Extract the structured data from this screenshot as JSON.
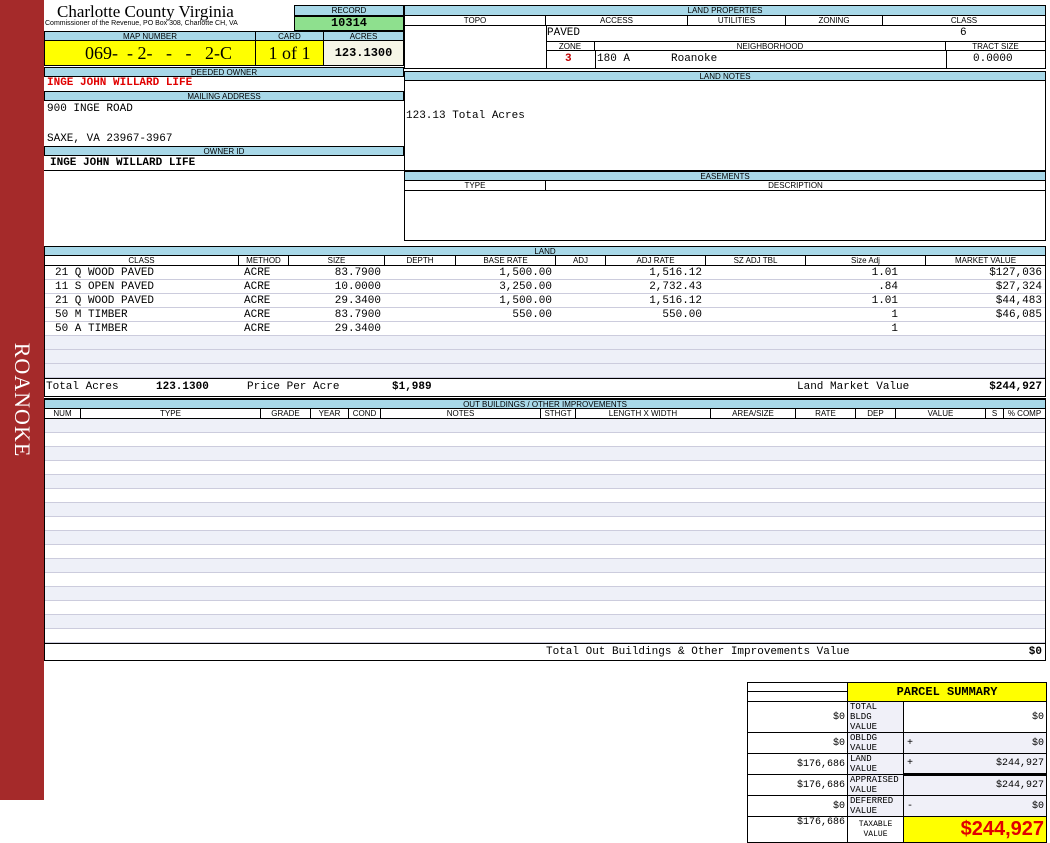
{
  "sidebar": {
    "label": "ROANOKE",
    "color": "#a52a2a"
  },
  "header": {
    "title": "Charlotte County Virginia",
    "subtitle": "Commissioner of the Revenue, PO Box 308, Charlotte CH, VA"
  },
  "record": {
    "label": "RECORD",
    "value": "10314"
  },
  "map": {
    "label": "MAP NUMBER",
    "value": "069-  - 2-   -   -   2-C",
    "card_label": "CARD",
    "card": "1 of 1",
    "acres_label": "ACRES",
    "acres": "123.1300"
  },
  "owner": {
    "deeded_label": "DEEDED OWNER",
    "deeded": "INGE JOHN WILLARD LIFE",
    "mailing_label": "MAILING ADDRESS",
    "address1": "900 INGE ROAD",
    "address2": "SAXE, VA 23967-3967",
    "id_label": "OWNER ID",
    "id": "INGE JOHN WILLARD LIFE"
  },
  "land_properties": {
    "label": "LAND PROPERTIES",
    "topo": "TOPO",
    "access": "ACCESS",
    "utilities": "UTILITIES",
    "zoning": "ZONING",
    "class": "CLASS",
    "access_value": "PAVED",
    "class_value": "6",
    "zone_label": "ZONE",
    "neighborhood_label": "NEIGHBORHOOD",
    "tract_label": "TRACT SIZE",
    "zone": "3",
    "neighborhood_code": "180 A",
    "neighborhood": "Roanoke",
    "tract": "0.0000"
  },
  "land_notes": {
    "label": "LAND NOTES",
    "text": "123.13 Total Acres"
  },
  "easements": {
    "label": "EASEMENTS",
    "type": "TYPE",
    "description": "DESCRIPTION"
  },
  "land": {
    "label": "LAND",
    "columns": [
      "CLASS",
      "METHOD",
      "SIZE",
      "DEPTH",
      "BASE RATE",
      "ADJ",
      "ADJ RATE",
      "SZ ADJ TBL",
      "Size Adj",
      "MARKET VALUE"
    ],
    "rows": [
      [
        "21 Q WOOD PAVED",
        "ACRE",
        "83.7900",
        "",
        "1,500.00",
        "",
        "1,516.12",
        "",
        "1.01",
        "$127,036"
      ],
      [
        "11 S OPEN PAVED",
        "ACRE",
        "10.0000",
        "",
        "3,250.00",
        "",
        "2,732.43",
        "",
        ".84",
        "$27,324"
      ],
      [
        "21 Q WOOD PAVED",
        "ACRE",
        "29.3400",
        "",
        "1,500.00",
        "",
        "1,516.12",
        "",
        "1.01",
        "$44,483"
      ],
      [
        "50 M TIMBER",
        "ACRE",
        "83.7900",
        "",
        "550.00",
        "",
        "550.00",
        "",
        "1",
        "$46,085"
      ],
      [
        "50 A TIMBER",
        "ACRE",
        "29.3400",
        "",
        "",
        "",
        "",
        "",
        "1",
        ""
      ]
    ],
    "total_acres_label": "Total Acres",
    "total_acres": "123.1300",
    "ppa_label": "Price Per Acre",
    "ppa": "$1,989",
    "market_label": "Land Market Value",
    "market": "$244,927"
  },
  "outbuildings": {
    "label": "OUT BUILDINGS / OTHER IMPROVEMENTS",
    "columns": [
      "NUM",
      "TYPE",
      "GRADE",
      "YEAR",
      "COND",
      "NOTES",
      "STHGT",
      "LENGTH X WIDTH",
      "AREA/SIZE",
      "RATE",
      "DEP",
      "VALUE",
      "S",
      "% COMP"
    ],
    "total_label": "Total Out Buildings & Other Improvements Value",
    "total": "$0"
  },
  "summary": {
    "title": "PARCEL SUMMARY",
    "rows": [
      {
        "left": "$0",
        "label": "TOTAL BLDG VALUE",
        "op": "",
        "value": "$0"
      },
      {
        "left": "$0",
        "label": "OBLDG VALUE",
        "op": "+",
        "value": "$0"
      },
      {
        "left": "$176,686",
        "label": "LAND VALUE",
        "op": "+",
        "value": "$244,927"
      },
      {
        "left": "$176,686",
        "label": "APPRAISED VALUE",
        "op": "",
        "value": "$244,927"
      },
      {
        "left": "$0",
        "label": "DEFERRED VALUE",
        "op": "-",
        "value": "$0"
      }
    ],
    "taxable_left": "$176,686",
    "taxable_label": "TAXABLE VALUE",
    "taxable": "$244,927"
  }
}
